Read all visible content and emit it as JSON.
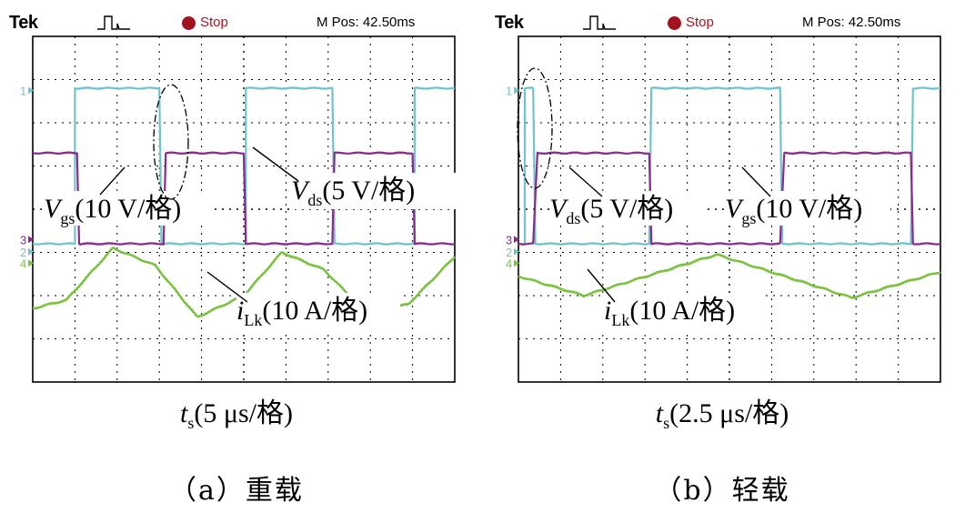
{
  "colors": {
    "vgs": "#8b2a8e",
    "vds": "#6fc4cc",
    "ilk": "#7cc242",
    "stop": "#a3131f",
    "grid": "#000000"
  },
  "panels": [
    {
      "header": {
        "brand": "Tek",
        "status": "Stop",
        "mpos": "M Pos: 42.50ms"
      },
      "labels": {
        "vgs": {
          "main": "V",
          "sub": "gs",
          "rest": "(10 V/格)"
        },
        "vds": {
          "main": "V",
          "sub": "ds",
          "rest": "(5 V/格)"
        },
        "ilk": {
          "main": "i",
          "sub": "Lk",
          "rest": "(10 A/格)"
        }
      },
      "time_label": {
        "main": "t",
        "sub": "s",
        "rest": "(5 μs/格)"
      },
      "caption": "（a）重载",
      "markers": {
        "ch1": "1",
        "ch3": "3",
        "ch2": "2",
        "ch4": "4"
      }
    },
    {
      "header": {
        "brand": "Tek",
        "status": "Stop",
        "mpos": "M Pos: 42.50ms"
      },
      "labels": {
        "vds": {
          "main": "V",
          "sub": "ds",
          "rest": "(5 V/格)"
        },
        "vgs": {
          "main": "V",
          "sub": "gs",
          "rest": "(10 V/格)"
        },
        "ilk": {
          "main": "i",
          "sub": "Lk",
          "rest": "(10 A/格)"
        }
      },
      "time_label": {
        "main": "t",
        "sub": "s",
        "rest": "(2.5 μs/格)"
      },
      "caption": "（b）轻载",
      "markers": {
        "ch1": "1",
        "ch3": "3",
        "ch2": "2",
        "ch4": "4"
      }
    }
  ],
  "chart_data": [
    {
      "type": "line",
      "x_unit": "div",
      "xlim": [
        0,
        10
      ],
      "ylim": [
        0,
        8
      ],
      "series": [
        {
          "name": "Vds",
          "values": [
            [
              0,
              3.2
            ],
            [
              1.0,
              3.2
            ],
            [
              1.0,
              6.8
            ],
            [
              3.0,
              6.8
            ],
            [
              3.05,
              3.2
            ],
            [
              5.05,
              3.2
            ],
            [
              5.05,
              6.8
            ],
            [
              7.1,
              6.8
            ],
            [
              7.15,
              3.2
            ],
            [
              9.05,
              3.2
            ],
            [
              9.05,
              6.8
            ],
            [
              10,
              6.8
            ]
          ]
        },
        {
          "name": "Vgs",
          "values": [
            [
              0,
              5.3
            ],
            [
              1.05,
              5.3
            ],
            [
              1.1,
              3.2
            ],
            [
              3.1,
              3.2
            ],
            [
              3.15,
              5.3
            ],
            [
              5.0,
              5.3
            ],
            [
              5.05,
              3.2
            ],
            [
              7.1,
              3.2
            ],
            [
              7.15,
              5.3
            ],
            [
              9.0,
              5.3
            ],
            [
              9.05,
              3.2
            ],
            [
              10,
              3.2
            ]
          ]
        },
        {
          "name": "iLk",
          "values": [
            [
              0,
              1.7
            ],
            [
              0.8,
              1.9
            ],
            [
              1.9,
              3.1
            ],
            [
              2.9,
              2.7
            ],
            [
              3.9,
              1.5
            ],
            [
              5.0,
              2.0
            ],
            [
              5.9,
              3.0
            ],
            [
              6.9,
              2.6
            ],
            [
              7.9,
              1.6
            ],
            [
              8.9,
              1.8
            ],
            [
              10,
              2.9
            ]
          ]
        }
      ]
    },
    {
      "type": "line",
      "x_unit": "div",
      "xlim": [
        0,
        10
      ],
      "ylim": [
        0,
        8
      ],
      "series": [
        {
          "name": "Vds",
          "values": [
            [
              0,
              3.2
            ],
            [
              0.15,
              3.2
            ],
            [
              0.15,
              6.8
            ],
            [
              0.35,
              6.8
            ],
            [
              0.4,
              3.2
            ],
            [
              3.1,
              3.2
            ],
            [
              3.15,
              6.8
            ],
            [
              6.2,
              6.8
            ],
            [
              6.25,
              3.2
            ],
            [
              9.3,
              3.2
            ],
            [
              9.35,
              6.8
            ],
            [
              10,
              6.8
            ]
          ]
        },
        {
          "name": "Vgs",
          "values": [
            [
              0,
              3.2
            ],
            [
              0.35,
              3.2
            ],
            [
              0.45,
              5.3
            ],
            [
              3.1,
              5.3
            ],
            [
              3.15,
              3.2
            ],
            [
              6.2,
              3.2
            ],
            [
              6.3,
              5.3
            ],
            [
              9.3,
              5.3
            ],
            [
              9.35,
              3.2
            ],
            [
              10,
              3.2
            ]
          ]
        },
        {
          "name": "iLk",
          "values": [
            [
              0,
              2.45
            ],
            [
              1.55,
              2.0
            ],
            [
              4.7,
              2.95
            ],
            [
              7.9,
              1.95
            ],
            [
              10,
              2.55
            ]
          ]
        }
      ]
    }
  ]
}
